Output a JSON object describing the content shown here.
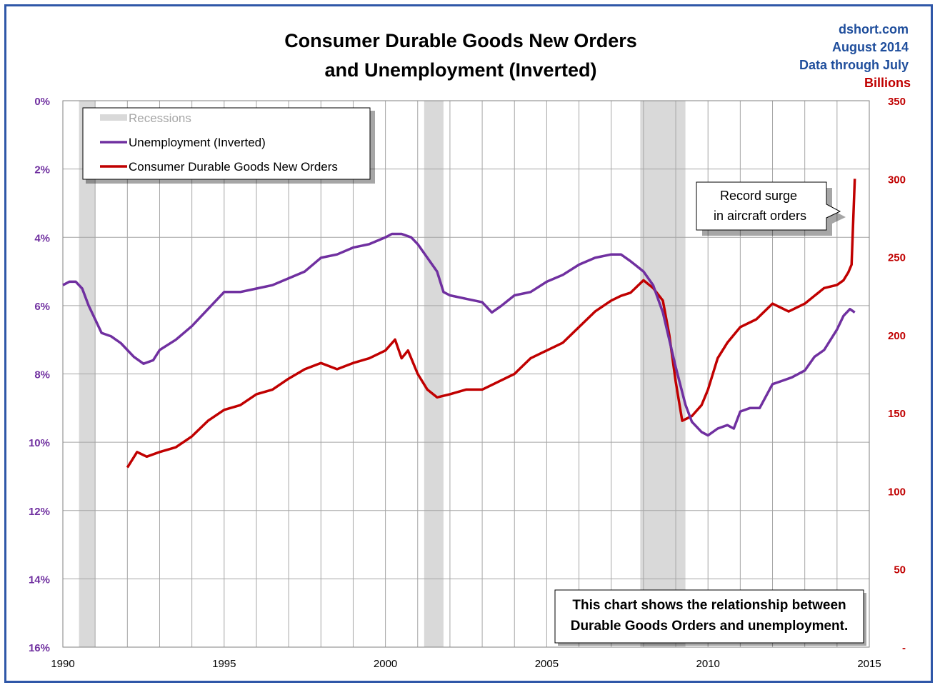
{
  "colors": {
    "unemployment": "#7030a0",
    "durable": "#c00000",
    "recession": "#d9d9d9",
    "source_blue": "#1f4e9c",
    "left_axis": "#7030a0",
    "right_axis": "#c00000",
    "frame": "#2f57a8"
  },
  "header": {
    "title_line1": "Consumer Durable Goods New Orders",
    "title_line2": "and Unemployment (Inverted)",
    "source": "dshort.com",
    "date": "August 2014",
    "data_through": "Data through July",
    "right_unit": "Billions"
  },
  "legend": {
    "recessions": "Recessions",
    "unemployment": "Unemployment (Inverted)",
    "durable": "Consumer Durable Goods New Orders"
  },
  "annotation": {
    "line1": "Record surge",
    "line2": "in aircraft orders"
  },
  "note": {
    "line1": "This chart shows the relationship between",
    "line2": "Durable Goods Orders and unemployment."
  },
  "chart_data": {
    "type": "line",
    "title": "Consumer Durable Goods New Orders and Unemployment (Inverted)",
    "grid": true,
    "legend_position": "top-left",
    "x_axis": {
      "range": [
        1990,
        2015
      ],
      "ticks": [
        1990,
        1995,
        2000,
        2005,
        2010,
        2015
      ],
      "tick_labels": [
        "1990",
        "1995",
        "2000",
        "2005",
        "2010",
        "2015"
      ]
    },
    "y_left": {
      "range": [
        0,
        16
      ],
      "inverted": true,
      "ticks": [
        0,
        2,
        4,
        6,
        8,
        10,
        12,
        14,
        16
      ],
      "tick_labels": [
        "0%",
        "2%",
        "4%",
        "6%",
        "8%",
        "10%",
        "12%",
        "14%",
        "16%"
      ]
    },
    "y_right": {
      "label": "Billions",
      "range": [
        0,
        350
      ],
      "ticks": [
        0,
        50,
        100,
        150,
        200,
        250,
        300,
        350
      ],
      "tick_labels": [
        "-",
        "50",
        "100",
        "150",
        "200",
        "250",
        "300",
        "350"
      ]
    },
    "recessions": [
      [
        1990.5,
        1991.0
      ],
      [
        2001.2,
        2001.8
      ],
      [
        2007.9,
        2009.3
      ]
    ],
    "series": [
      {
        "name": "Unemployment (Inverted)",
        "axis": "left",
        "x": [
          1990.0,
          1990.2,
          1990.4,
          1990.6,
          1990.8,
          1991.0,
          1991.2,
          1991.5,
          1991.8,
          1992.0,
          1992.2,
          1992.5,
          1992.8,
          1993.0,
          1993.5,
          1994.0,
          1994.5,
          1995.0,
          1995.5,
          1996.0,
          1996.5,
          1997.0,
          1997.5,
          1998.0,
          1998.5,
          1999.0,
          1999.5,
          2000.0,
          2000.2,
          2000.5,
          2000.8,
          2001.0,
          2001.3,
          2001.6,
          2001.8,
          2002.0,
          2002.5,
          2003.0,
          2003.3,
          2003.6,
          2004.0,
          2004.5,
          2005.0,
          2005.5,
          2006.0,
          2006.5,
          2007.0,
          2007.3,
          2007.6,
          2008.0,
          2008.3,
          2008.6,
          2009.0,
          2009.3,
          2009.5,
          2009.8,
          2010.0,
          2010.3,
          2010.6,
          2010.8,
          2011.0,
          2011.3,
          2011.6,
          2012.0,
          2012.3,
          2012.6,
          2013.0,
          2013.3,
          2013.6,
          2014.0,
          2014.2,
          2014.4,
          2014.55
        ],
        "values": [
          5.4,
          5.3,
          5.3,
          5.5,
          6.0,
          6.4,
          6.8,
          6.9,
          7.1,
          7.3,
          7.5,
          7.7,
          7.6,
          7.3,
          7.0,
          6.6,
          6.1,
          5.6,
          5.6,
          5.5,
          5.4,
          5.2,
          5.0,
          4.6,
          4.5,
          4.3,
          4.2,
          4.0,
          3.9,
          3.9,
          4.0,
          4.2,
          4.6,
          5.0,
          5.6,
          5.7,
          5.8,
          5.9,
          6.2,
          6.0,
          5.7,
          5.6,
          5.3,
          5.1,
          4.8,
          4.6,
          4.5,
          4.5,
          4.7,
          5.0,
          5.4,
          6.2,
          7.8,
          8.9,
          9.4,
          9.7,
          9.8,
          9.6,
          9.5,
          9.6,
          9.1,
          9.0,
          9.0,
          8.3,
          8.2,
          8.1,
          7.9,
          7.5,
          7.3,
          6.7,
          6.3,
          6.1,
          6.2
        ]
      },
      {
        "name": "Consumer Durable Goods New Orders",
        "axis": "right",
        "x": [
          1992.0,
          1992.3,
          1992.6,
          1993.0,
          1993.5,
          1994.0,
          1994.5,
          1995.0,
          1995.5,
          1996.0,
          1996.5,
          1997.0,
          1997.5,
          1998.0,
          1998.5,
          1999.0,
          1999.5,
          2000.0,
          2000.3,
          2000.5,
          2000.7,
          2001.0,
          2001.3,
          2001.6,
          2002.0,
          2002.5,
          2003.0,
          2003.5,
          2004.0,
          2004.5,
          2005.0,
          2005.5,
          2006.0,
          2006.5,
          2007.0,
          2007.3,
          2007.6,
          2008.0,
          2008.3,
          2008.6,
          2008.8,
          2009.0,
          2009.2,
          2009.5,
          2009.8,
          2010.0,
          2010.3,
          2010.6,
          2011.0,
          2011.5,
          2012.0,
          2012.5,
          2013.0,
          2013.3,
          2013.6,
          2014.0,
          2014.2,
          2014.35,
          2014.45,
          2014.55
        ],
        "values": [
          115,
          125,
          122,
          125,
          128,
          135,
          145,
          152,
          155,
          162,
          165,
          172,
          178,
          182,
          178,
          182,
          185,
          190,
          197,
          185,
          190,
          175,
          165,
          160,
          162,
          165,
          165,
          170,
          175,
          185,
          190,
          195,
          205,
          215,
          222,
          225,
          227,
          235,
          230,
          222,
          200,
          170,
          145,
          148,
          155,
          165,
          185,
          195,
          205,
          210,
          220,
          215,
          220,
          225,
          230,
          232,
          235,
          240,
          245,
          300
        ]
      }
    ]
  }
}
